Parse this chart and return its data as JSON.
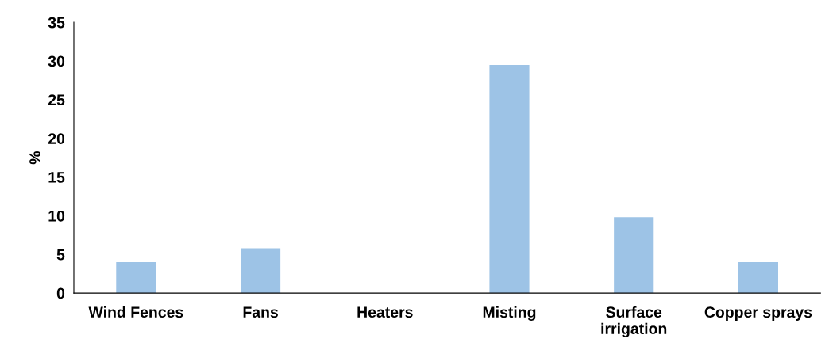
{
  "chart_data": {
    "type": "bar",
    "ylabel": "%",
    "categories": [
      "Wind Fences",
      "Fans",
      "Heaters",
      "Misting",
      "Surface\nirrigation",
      "Copper sprays"
    ],
    "values": [
      4,
      5.8,
      0,
      29.5,
      9.8,
      4
    ],
    "color": "#9dc3e6",
    "ylim": [
      0,
      35
    ],
    "yticks": [
      0,
      5,
      10,
      15,
      20,
      25,
      30,
      35
    ],
    "grid": false,
    "legend": false
  }
}
